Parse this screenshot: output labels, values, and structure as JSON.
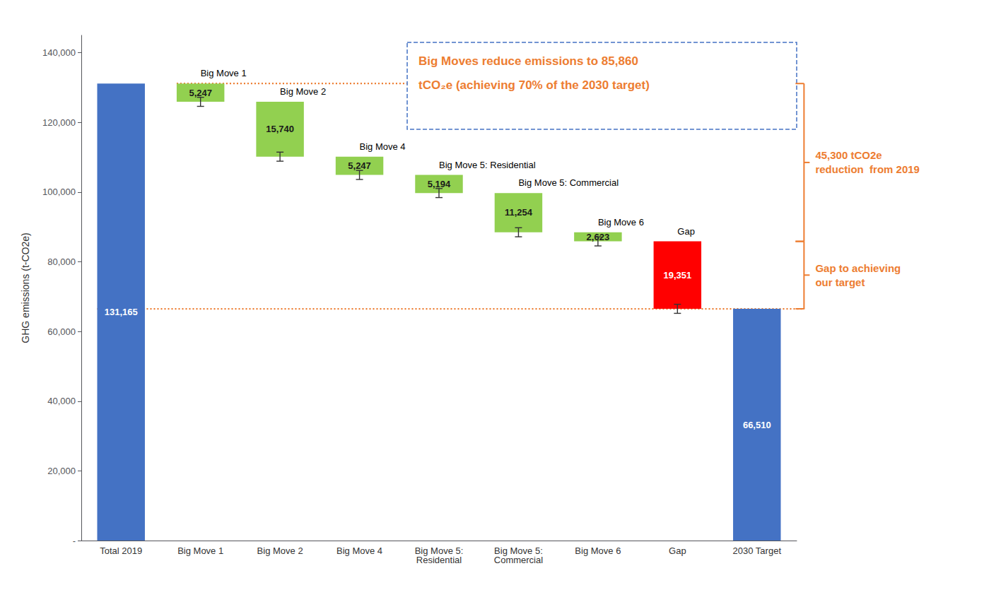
{
  "chart_data": {
    "type": "waterfall",
    "categories": [
      "Total 2019",
      "Big Move 1",
      "Big Move 2",
      "Big Move 4",
      "Big Move 5:\nResidential",
      "Big Move 5:\nCommercial",
      "Big Move 6",
      "Gap",
      "2030 Target"
    ],
    "values": [
      131165,
      5247,
      15740,
      5247,
      5194,
      11254,
      2623,
      19351,
      66510
    ],
    "bottoms": [
      0,
      125918,
      110178,
      104931,
      99737,
      88483,
      85860,
      66510,
      0
    ],
    "value_labels": [
      "131,165",
      "5,247",
      "15,740",
      "5,247",
      "5,194",
      "11,254",
      "2,623",
      "19,351",
      "66,510"
    ],
    "data_labels": true,
    "colors": [
      "#4472C4",
      "#92D050",
      "#92D050",
      "#92D050",
      "#92D050",
      "#92D050",
      "#92D050",
      "#FF0000",
      "#4472C4"
    ],
    "top_labels": [
      null,
      "Big Move 1",
      "Big Move 2",
      "Big Move 4",
      "Big Move 5: Residential",
      "Big Move 5: Commercial",
      "Big Move 6",
      "Gap",
      null
    ],
    "error_bars": [
      null,
      1300,
      1300,
      1300,
      1300,
      1300,
      1300,
      1300,
      null
    ],
    "reference_lines": [
      {
        "value": 131165,
        "color": "#ED7D31",
        "line_style": "dotted"
      },
      {
        "value": 66510,
        "color": "#ED7D31",
        "line_style": "dotted"
      }
    ],
    "annotation_box": {
      "text": [
        "Big Moves reduce emissions to 85,860",
        "tCO₂e (achieving 70% of the 2030 target)"
      ],
      "color": "#ED7D31",
      "border_color": "#4472C4"
    },
    "brackets": [
      {
        "from": 131165,
        "to": 85860,
        "text": [
          "45,300 tCO2e",
          "reduction  from 2019"
        ],
        "color": "#ED7D31"
      },
      {
        "from": 85860,
        "to": 66510,
        "text": [
          "Gap to achieving",
          "our target"
        ],
        "color": "#ED7D31"
      }
    ],
    "ylabel": "GHG emissions (t-CO2e)",
    "ylim": [
      0,
      145000
    ],
    "yticks": [
      {
        "value": 0,
        "label": "-"
      },
      {
        "value": 20000,
        "label": "20,000"
      },
      {
        "value": 40000,
        "label": "40,000"
      },
      {
        "value": 60000,
        "label": "60,000"
      },
      {
        "value": 80000,
        "label": "80,000"
      },
      {
        "value": 100000,
        "label": "100,000"
      },
      {
        "value": 120000,
        "label": "120,000"
      },
      {
        "value": 140000,
        "label": "140,000"
      }
    ],
    "grid": false
  }
}
